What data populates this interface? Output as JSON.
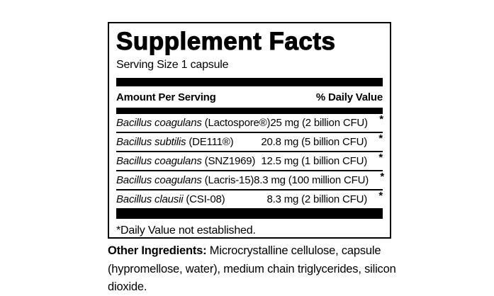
{
  "label": {
    "title": "Supplement Facts",
    "serving_size": "Serving Size 1 capsule",
    "columns": {
      "amount_header": "Amount Per Serving",
      "daily_value_header": "% Daily Value"
    },
    "rows": [
      {
        "species": "Bacillus coagulans",
        "strain": "(Lactospore®)",
        "amount": "25 mg (2 billion CFU)",
        "dv": "*"
      },
      {
        "species": "Bacillus subtilis",
        "strain": "(DE111®)",
        "amount": "20.8 mg (5 billion CFU)",
        "dv": "*"
      },
      {
        "species": "Bacillus coagulans",
        "strain": "(SNZ1969)",
        "amount": "12.5 mg (1 billion CFU)",
        "dv": "*"
      },
      {
        "species": "Bacillus coagulans",
        "strain": "(Lacris-15)",
        "amount": "8.3 mg (100 million CFU)",
        "dv": "*"
      },
      {
        "species": "Bacillus clausii",
        "strain": "(CSI-08)",
        "amount": "8.3 mg (2 billion CFU)",
        "dv": "*"
      }
    ],
    "footnote": "*Daily Value not established."
  },
  "other_ingredients": {
    "label": "Other Ingredients:",
    "text": " Microcrystalline cellulose, capsule (hypromellose, water), medium chain triglycerides, silicon dioxide."
  },
  "colors": {
    "ink": "#000000",
    "background": "#ffffff"
  }
}
